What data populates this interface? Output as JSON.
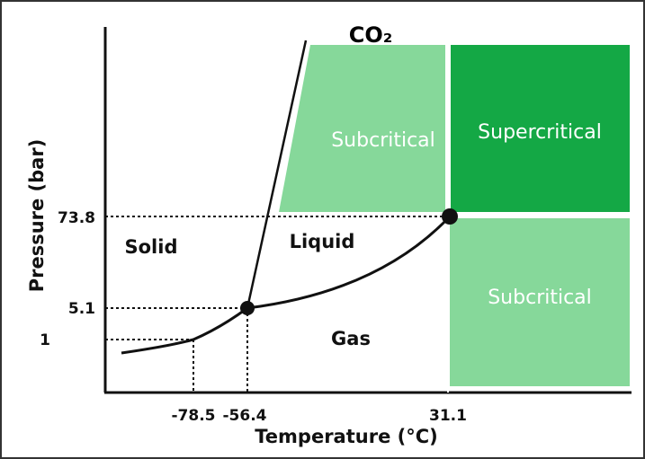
{
  "title": "CO₂",
  "axes": {
    "x_label": "Temperature (°C)",
    "y_label": "Pressure (bar)"
  },
  "y_ticks": [
    "73.8",
    "5.1",
    "1"
  ],
  "x_ticks": [
    "-78.5",
    "-56.4",
    "31.1"
  ],
  "regions": {
    "solid": "Solid",
    "liquid": "Liquid",
    "gas": "Gas",
    "subcritical_top": "Subcritical",
    "supercritical": "Supercritical",
    "subcritical_right": "Subcritical"
  }
}
